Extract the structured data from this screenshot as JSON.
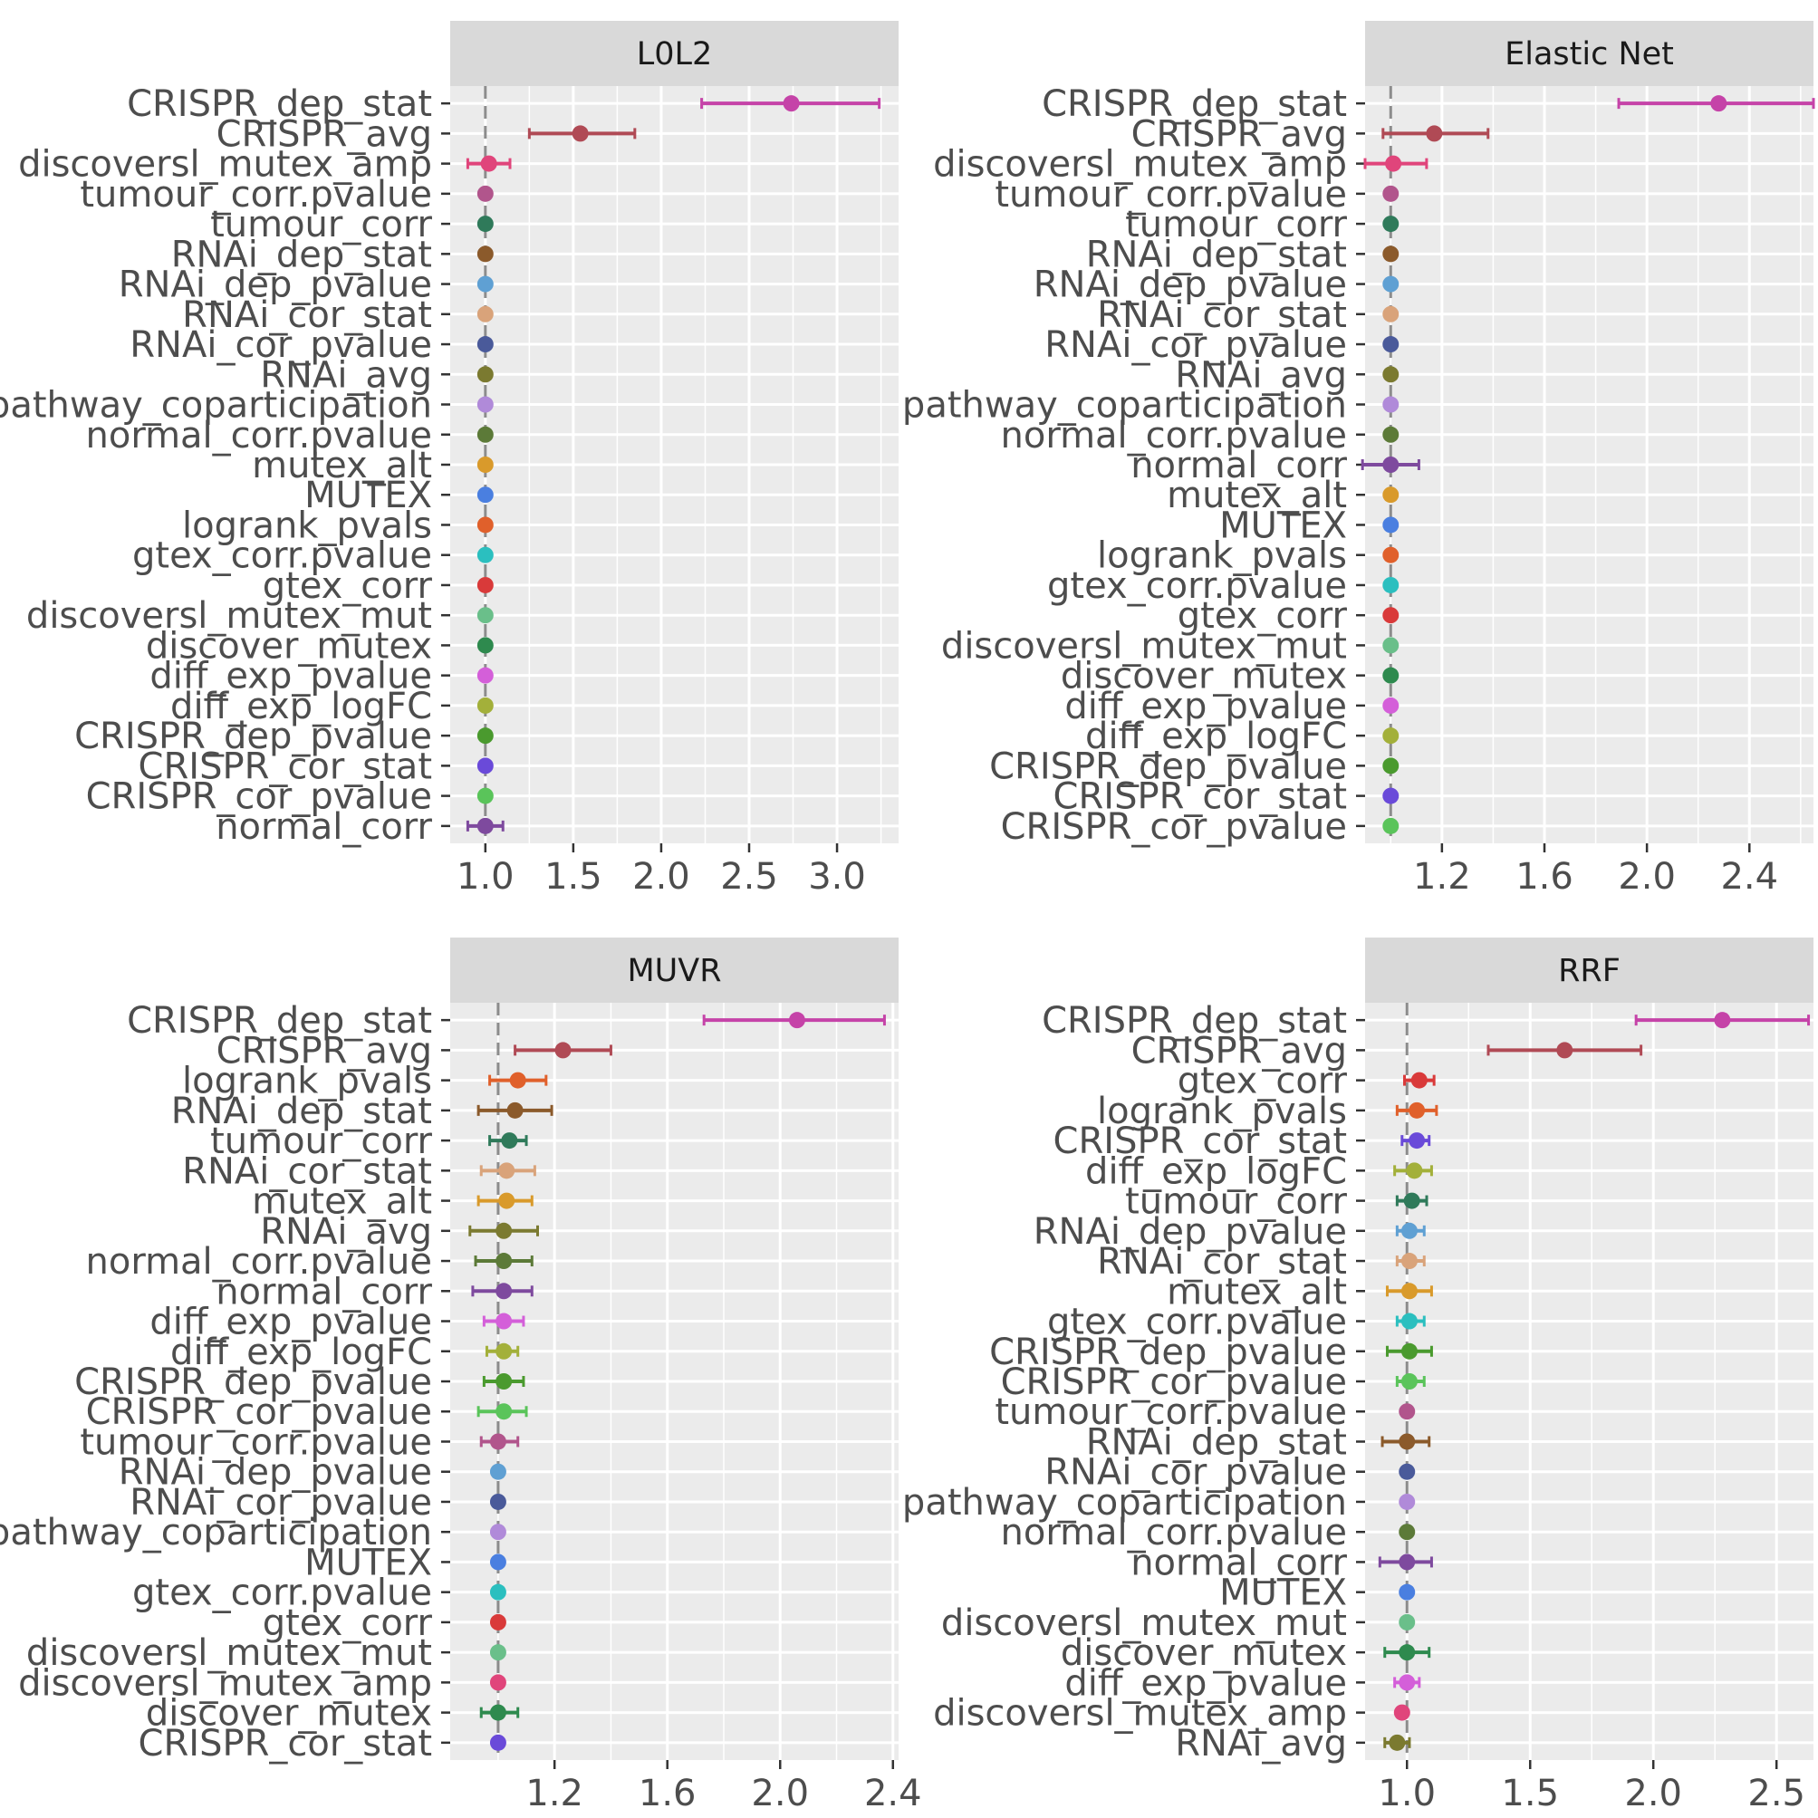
{
  "chart_data": [
    {
      "type": "scatter",
      "title": "L0L2",
      "reference_line": 1.0,
      "xlim": [
        0.8,
        3.35
      ],
      "xticks": [
        1.0,
        1.5,
        2.0,
        2.5,
        3.0
      ],
      "xtick_labels": [
        "1.0",
        "1.5",
        "2.0",
        "2.5",
        "3.0"
      ],
      "features": [
        {
          "name": "CRISPR_dep_stat",
          "value": 2.74,
          "lo": 2.23,
          "hi": 3.24,
          "color": "#c543a8"
        },
        {
          "name": "CRISPR_avg",
          "value": 1.54,
          "lo": 1.25,
          "hi": 1.85,
          "color": "#b04a55"
        },
        {
          "name": "discoversl_mutex_amp",
          "value": 1.02,
          "lo": 0.9,
          "hi": 1.14,
          "color": "#e0457b"
        },
        {
          "name": "tumour_corr.pvalue",
          "value": 1.0,
          "lo": 1.0,
          "hi": 1.0,
          "color": "#b1558c"
        },
        {
          "name": "tumour_corr",
          "value": 1.0,
          "lo": 1.0,
          "hi": 1.0,
          "color": "#2f7a5a"
        },
        {
          "name": "RNAi_dep_stat",
          "value": 1.0,
          "lo": 1.0,
          "hi": 1.0,
          "color": "#8b5a2b"
        },
        {
          "name": "RNAi_dep_pvalue",
          "value": 1.0,
          "lo": 1.0,
          "hi": 1.0,
          "color": "#5fa0d3"
        },
        {
          "name": "RNAi_cor_stat",
          "value": 1.0,
          "lo": 1.0,
          "hi": 1.0,
          "color": "#d9a37a"
        },
        {
          "name": "RNAi_cor_pvalue",
          "value": 1.0,
          "lo": 1.0,
          "hi": 1.0,
          "color": "#4a5a9a"
        },
        {
          "name": "RNAi_avg",
          "value": 1.0,
          "lo": 1.0,
          "hi": 1.0,
          "color": "#7b7a30"
        },
        {
          "name": "pathway_coparticipation",
          "value": 1.0,
          "lo": 1.0,
          "hi": 1.0,
          "color": "#b08ad9"
        },
        {
          "name": "normal_corr.pvalue",
          "value": 1.0,
          "lo": 1.0,
          "hi": 1.0,
          "color": "#5c7a38"
        },
        {
          "name": "mutex_alt",
          "value": 1.0,
          "lo": 1.0,
          "hi": 1.0,
          "color": "#d99a2b"
        },
        {
          "name": "MUTEX",
          "value": 1.0,
          "lo": 1.0,
          "hi": 1.0,
          "color": "#4a7fe0"
        },
        {
          "name": "logrank_pvals",
          "value": 1.0,
          "lo": 1.0,
          "hi": 1.0,
          "color": "#e0602b"
        },
        {
          "name": "gtex_corr.pvalue",
          "value": 1.0,
          "lo": 1.0,
          "hi": 1.0,
          "color": "#2bbfbf"
        },
        {
          "name": "gtex_corr",
          "value": 1.0,
          "lo": 1.0,
          "hi": 1.0,
          "color": "#d93a3a"
        },
        {
          "name": "discoversl_mutex_mut",
          "value": 1.0,
          "lo": 1.0,
          "hi": 1.0,
          "color": "#6abf8a"
        },
        {
          "name": "discover_mutex",
          "value": 1.0,
          "lo": 1.0,
          "hi": 1.0,
          "color": "#2e8a4e"
        },
        {
          "name": "diff_exp_pvalue",
          "value": 1.0,
          "lo": 1.0,
          "hi": 1.0,
          "color": "#d45fd9"
        },
        {
          "name": "diff_exp_logFC",
          "value": 1.0,
          "lo": 1.0,
          "hi": 1.0,
          "color": "#a3b03a"
        },
        {
          "name": "CRISPR_dep_pvalue",
          "value": 1.0,
          "lo": 1.0,
          "hi": 1.0,
          "color": "#4a9a2e"
        },
        {
          "name": "CRISPR_cor_stat",
          "value": 1.0,
          "lo": 1.0,
          "hi": 1.0,
          "color": "#6a4ad9"
        },
        {
          "name": "CRISPR_cor_pvalue",
          "value": 1.0,
          "lo": 1.0,
          "hi": 1.0,
          "color": "#5ac45a"
        },
        {
          "name": "normal_corr",
          "value": 1.0,
          "lo": 0.9,
          "hi": 1.1,
          "color": "#7e4a9e"
        }
      ]
    },
    {
      "type": "scatter",
      "title": "Elastic Net",
      "reference_line": 1.0,
      "xlim": [
        0.9,
        2.65
      ],
      "xticks": [
        1.2,
        1.6,
        2.0,
        2.4
      ],
      "xtick_labels": [
        "1.2",
        "1.6",
        "2.0",
        "2.4"
      ],
      "features": [
        {
          "name": "CRISPR_dep_stat",
          "value": 2.28,
          "lo": 1.89,
          "hi": 2.65,
          "color": "#c543a8"
        },
        {
          "name": "CRISPR_avg",
          "value": 1.17,
          "lo": 0.97,
          "hi": 1.38,
          "color": "#b04a55"
        },
        {
          "name": "discoversl_mutex_amp",
          "value": 1.01,
          "lo": 0.9,
          "hi": 1.14,
          "color": "#e0457b"
        },
        {
          "name": "tumour_corr.pvalue",
          "value": 1.0,
          "lo": 1.0,
          "hi": 1.0,
          "color": "#b1558c"
        },
        {
          "name": "tumour_corr",
          "value": 1.0,
          "lo": 1.0,
          "hi": 1.0,
          "color": "#2f7a5a"
        },
        {
          "name": "RNAi_dep_stat",
          "value": 1.0,
          "lo": 1.0,
          "hi": 1.0,
          "color": "#8b5a2b"
        },
        {
          "name": "RNAi_dep_pvalue",
          "value": 1.0,
          "lo": 1.0,
          "hi": 1.0,
          "color": "#5fa0d3"
        },
        {
          "name": "RNAi_cor_stat",
          "value": 1.0,
          "lo": 1.0,
          "hi": 1.0,
          "color": "#d9a37a"
        },
        {
          "name": "RNAi_cor_pvalue",
          "value": 1.0,
          "lo": 1.0,
          "hi": 1.0,
          "color": "#4a5a9a"
        },
        {
          "name": "RNAi_avg",
          "value": 1.0,
          "lo": 1.0,
          "hi": 1.0,
          "color": "#7b7a30"
        },
        {
          "name": "pathway_coparticipation",
          "value": 1.0,
          "lo": 1.0,
          "hi": 1.0,
          "color": "#b08ad9"
        },
        {
          "name": "normal_corr.pvalue",
          "value": 1.0,
          "lo": 1.0,
          "hi": 1.0,
          "color": "#5c7a38"
        },
        {
          "name": "normal_corr",
          "value": 1.0,
          "lo": 0.89,
          "hi": 1.11,
          "color": "#7e4a9e"
        },
        {
          "name": "mutex_alt",
          "value": 1.0,
          "lo": 1.0,
          "hi": 1.0,
          "color": "#d99a2b"
        },
        {
          "name": "MUTEX",
          "value": 1.0,
          "lo": 1.0,
          "hi": 1.0,
          "color": "#4a7fe0"
        },
        {
          "name": "logrank_pvals",
          "value": 1.0,
          "lo": 1.0,
          "hi": 1.0,
          "color": "#e0602b"
        },
        {
          "name": "gtex_corr.pvalue",
          "value": 1.0,
          "lo": 1.0,
          "hi": 1.0,
          "color": "#2bbfbf"
        },
        {
          "name": "gtex_corr",
          "value": 1.0,
          "lo": 1.0,
          "hi": 1.0,
          "color": "#d93a3a"
        },
        {
          "name": "discoversl_mutex_mut",
          "value": 1.0,
          "lo": 1.0,
          "hi": 1.0,
          "color": "#6abf8a"
        },
        {
          "name": "discover_mutex",
          "value": 1.0,
          "lo": 1.0,
          "hi": 1.0,
          "color": "#2e8a4e"
        },
        {
          "name": "diff_exp_pvalue",
          "value": 1.0,
          "lo": 1.0,
          "hi": 1.0,
          "color": "#d45fd9"
        },
        {
          "name": "diff_exp_logFC",
          "value": 1.0,
          "lo": 1.0,
          "hi": 1.0,
          "color": "#a3b03a"
        },
        {
          "name": "CRISPR_dep_pvalue",
          "value": 1.0,
          "lo": 1.0,
          "hi": 1.0,
          "color": "#4a9a2e"
        },
        {
          "name": "CRISPR_cor_stat",
          "value": 1.0,
          "lo": 1.0,
          "hi": 1.0,
          "color": "#6a4ad9"
        },
        {
          "name": "CRISPR_cor_pvalue",
          "value": 1.0,
          "lo": 1.0,
          "hi": 1.0,
          "color": "#5ac45a"
        }
      ]
    },
    {
      "type": "scatter",
      "title": "MUVR",
      "reference_line": 1.0,
      "xlim": [
        0.83,
        2.42
      ],
      "xticks": [
        1.2,
        1.6,
        2.0,
        2.4
      ],
      "xtick_labels": [
        "1.2",
        "1.6",
        "2.0",
        "2.4"
      ],
      "features": [
        {
          "name": "CRISPR_dep_stat",
          "value": 2.06,
          "lo": 1.73,
          "hi": 2.37,
          "color": "#c543a8"
        },
        {
          "name": "CRISPR_avg",
          "value": 1.23,
          "lo": 1.06,
          "hi": 1.4,
          "color": "#b04a55"
        },
        {
          "name": "logrank_pvals",
          "value": 1.07,
          "lo": 0.97,
          "hi": 1.17,
          "color": "#e0602b"
        },
        {
          "name": "RNAi_dep_stat",
          "value": 1.06,
          "lo": 0.93,
          "hi": 1.19,
          "color": "#8b5a2b"
        },
        {
          "name": "tumour_corr",
          "value": 1.04,
          "lo": 0.97,
          "hi": 1.1,
          "color": "#2f7a5a"
        },
        {
          "name": "RNAi_cor_stat",
          "value": 1.03,
          "lo": 0.94,
          "hi": 1.13,
          "color": "#d9a37a"
        },
        {
          "name": "mutex_alt",
          "value": 1.03,
          "lo": 0.93,
          "hi": 1.12,
          "color": "#d99a2b"
        },
        {
          "name": "RNAi_avg",
          "value": 1.02,
          "lo": 0.9,
          "hi": 1.14,
          "color": "#7b7a30"
        },
        {
          "name": "normal_corr.pvalue",
          "value": 1.02,
          "lo": 0.92,
          "hi": 1.12,
          "color": "#5c7a38"
        },
        {
          "name": "normal_corr",
          "value": 1.02,
          "lo": 0.91,
          "hi": 1.12,
          "color": "#7e4a9e"
        },
        {
          "name": "diff_exp_pvalue",
          "value": 1.02,
          "lo": 0.95,
          "hi": 1.09,
          "color": "#d45fd9"
        },
        {
          "name": "diff_exp_logFC",
          "value": 1.02,
          "lo": 0.96,
          "hi": 1.07,
          "color": "#a3b03a"
        },
        {
          "name": "CRISPR_dep_pvalue",
          "value": 1.02,
          "lo": 0.95,
          "hi": 1.09,
          "color": "#4a9a2e"
        },
        {
          "name": "CRISPR_cor_pvalue",
          "value": 1.02,
          "lo": 0.93,
          "hi": 1.1,
          "color": "#5ac45a"
        },
        {
          "name": "tumour_corr.pvalue",
          "value": 1.0,
          "lo": 0.94,
          "hi": 1.07,
          "color": "#b1558c"
        },
        {
          "name": "RNAi_dep_pvalue",
          "value": 1.0,
          "lo": 1.0,
          "hi": 1.0,
          "color": "#5fa0d3"
        },
        {
          "name": "RNAi_cor_pvalue",
          "value": 1.0,
          "lo": 1.0,
          "hi": 1.0,
          "color": "#4a5a9a"
        },
        {
          "name": "pathway_coparticipation",
          "value": 1.0,
          "lo": 1.0,
          "hi": 1.0,
          "color": "#b08ad9"
        },
        {
          "name": "MUTEX",
          "value": 1.0,
          "lo": 1.0,
          "hi": 1.0,
          "color": "#4a7fe0"
        },
        {
          "name": "gtex_corr.pvalue",
          "value": 1.0,
          "lo": 1.0,
          "hi": 1.0,
          "color": "#2bbfbf"
        },
        {
          "name": "gtex_corr",
          "value": 1.0,
          "lo": 1.0,
          "hi": 1.0,
          "color": "#d93a3a"
        },
        {
          "name": "discoversl_mutex_mut",
          "value": 1.0,
          "lo": 1.0,
          "hi": 1.0,
          "color": "#6abf8a"
        },
        {
          "name": "discoversl_mutex_amp",
          "value": 1.0,
          "lo": 1.0,
          "hi": 1.0,
          "color": "#e0457b"
        },
        {
          "name": "discover_mutex",
          "value": 1.0,
          "lo": 0.94,
          "hi": 1.07,
          "color": "#2e8a4e"
        },
        {
          "name": "CRISPR_cor_stat",
          "value": 1.0,
          "lo": 1.0,
          "hi": 1.0,
          "color": "#6a4ad9"
        }
      ]
    },
    {
      "type": "scatter",
      "title": "RRF",
      "reference_line": 1.0,
      "xlim": [
        0.83,
        2.65
      ],
      "xticks": [
        1.0,
        1.5,
        2.0,
        2.5
      ],
      "xtick_labels": [
        "1.0",
        "1.5",
        "2.0",
        "2.5"
      ],
      "features": [
        {
          "name": "CRISPR_dep_stat",
          "value": 2.28,
          "lo": 1.93,
          "hi": 2.63,
          "color": "#c543a8"
        },
        {
          "name": "CRISPR_avg",
          "value": 1.64,
          "lo": 1.33,
          "hi": 1.95,
          "color": "#b04a55"
        },
        {
          "name": "gtex_corr",
          "value": 1.05,
          "lo": 0.99,
          "hi": 1.11,
          "color": "#d93a3a"
        },
        {
          "name": "logrank_pvals",
          "value": 1.04,
          "lo": 0.96,
          "hi": 1.12,
          "color": "#e0602b"
        },
        {
          "name": "CRISPR_cor_stat",
          "value": 1.04,
          "lo": 0.98,
          "hi": 1.09,
          "color": "#6a4ad9"
        },
        {
          "name": "diff_exp_logFC",
          "value": 1.03,
          "lo": 0.95,
          "hi": 1.1,
          "color": "#a3b03a"
        },
        {
          "name": "tumour_corr",
          "value": 1.02,
          "lo": 0.96,
          "hi": 1.08,
          "color": "#2f7a5a"
        },
        {
          "name": "RNAi_dep_pvalue",
          "value": 1.01,
          "lo": 0.96,
          "hi": 1.07,
          "color": "#5fa0d3"
        },
        {
          "name": "RNAi_cor_stat",
          "value": 1.01,
          "lo": 0.96,
          "hi": 1.07,
          "color": "#d9a37a"
        },
        {
          "name": "mutex_alt",
          "value": 1.01,
          "lo": 0.92,
          "hi": 1.1,
          "color": "#d99a2b"
        },
        {
          "name": "gtex_corr.pvalue",
          "value": 1.01,
          "lo": 0.96,
          "hi": 1.07,
          "color": "#2bbfbf"
        },
        {
          "name": "CRISPR_dep_pvalue",
          "value": 1.01,
          "lo": 0.92,
          "hi": 1.1,
          "color": "#4a9a2e"
        },
        {
          "name": "CRISPR_cor_pvalue",
          "value": 1.01,
          "lo": 0.96,
          "hi": 1.07,
          "color": "#5ac45a"
        },
        {
          "name": "tumour_corr.pvalue",
          "value": 1.0,
          "lo": 1.0,
          "hi": 1.0,
          "color": "#b1558c"
        },
        {
          "name": "RNAi_dep_stat",
          "value": 1.0,
          "lo": 0.9,
          "hi": 1.09,
          "color": "#8b5a2b"
        },
        {
          "name": "RNAi_cor_pvalue",
          "value": 1.0,
          "lo": 1.0,
          "hi": 1.0,
          "color": "#4a5a9a"
        },
        {
          "name": "pathway_coparticipation",
          "value": 1.0,
          "lo": 1.0,
          "hi": 1.0,
          "color": "#b08ad9"
        },
        {
          "name": "normal_corr.pvalue",
          "value": 1.0,
          "lo": 1.0,
          "hi": 1.0,
          "color": "#5c7a38"
        },
        {
          "name": "normal_corr",
          "value": 1.0,
          "lo": 0.89,
          "hi": 1.1,
          "color": "#7e4a9e"
        },
        {
          "name": "MUTEX",
          "value": 1.0,
          "lo": 1.0,
          "hi": 1.0,
          "color": "#4a7fe0"
        },
        {
          "name": "discoversl_mutex_mut",
          "value": 1.0,
          "lo": 1.0,
          "hi": 1.0,
          "color": "#6abf8a"
        },
        {
          "name": "discover_mutex",
          "value": 1.0,
          "lo": 0.91,
          "hi": 1.09,
          "color": "#2e8a4e"
        },
        {
          "name": "diff_exp_pvalue",
          "value": 1.0,
          "lo": 0.95,
          "hi": 1.05,
          "color": "#d45fd9"
        },
        {
          "name": "discoversl_mutex_amp",
          "value": 0.98,
          "lo": 0.98,
          "hi": 0.98,
          "color": "#e0457b"
        },
        {
          "name": "RNAi_avg",
          "value": 0.96,
          "lo": 0.91,
          "hi": 1.01,
          "color": "#7b7a30"
        }
      ]
    }
  ]
}
